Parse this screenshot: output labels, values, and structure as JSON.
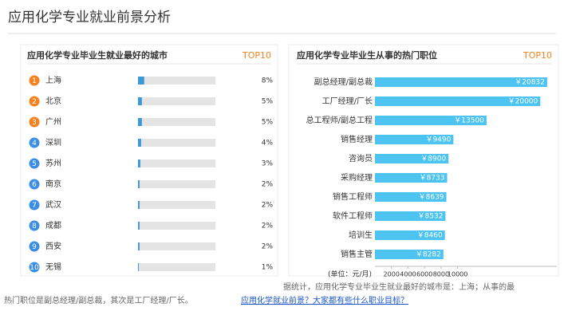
{
  "header": {
    "title": "应用化学专业就业前景分析"
  },
  "chart_data": [
    {
      "type": "progress",
      "title": "应用化学专业毕业生就业最好的城市",
      "badge": "TOP10",
      "ranks": [
        1,
        2,
        3,
        4,
        5,
        6,
        7,
        8,
        9,
        10
      ],
      "categories": [
        "上海",
        "北京",
        "广州",
        "深圳",
        "苏州",
        "南京",
        "武汉",
        "成都",
        "西安",
        "无锡"
      ],
      "values": [
        8,
        5,
        5,
        4,
        3,
        2,
        2,
        2,
        2,
        1
      ],
      "value_labels": [
        "8%",
        "5%",
        "5%",
        "4%",
        "3%",
        "2%",
        "2%",
        "2%",
        "2%",
        "1%"
      ],
      "xlim": [
        0,
        100
      ],
      "color": "#3a9ad9",
      "track_color": "#e4e4e4",
      "rank_colors": [
        "#f5821f",
        "#f5821f",
        "#f5821f",
        "#3a8ee6",
        "#3a8ee6",
        "#3a8ee6",
        "#3a8ee6",
        "#3a8ee6",
        "#3a8ee6",
        "#3a8ee6"
      ]
    },
    {
      "type": "bar",
      "title": "应用化学专业毕业生从事的热门职位",
      "badge": "TOP10",
      "categories": [
        "副总经理/副总裁",
        "工厂经理/厂长",
        "总工程师/副总工程",
        "销售经理",
        "咨询员",
        "采购经理",
        "销售工程师",
        "软件工程师",
        "培训生",
        "销售主管"
      ],
      "values": [
        20832,
        20000,
        13500,
        9490,
        8900,
        8733,
        8639,
        8532,
        8460,
        8282
      ],
      "value_labels": [
        "￥20832",
        "￥20000",
        "￥13500",
        "￥9490",
        "￥8900",
        "￥8733",
        "￥8639",
        "￥8532",
        "￥8460",
        "￥8282"
      ],
      "xlabel": "(单位：元/月)",
      "xlim": [
        0,
        22000
      ],
      "xticks": [
        2000,
        4000,
        6000,
        8000,
        10000
      ],
      "color": "#4cc3f0"
    }
  ],
  "footer": {
    "lines": [
      "据统计，应用化学专业毕业生就业最好的城市是：上海；从事的最",
      "热门职位是副总经理/副总裁，其次是工厂经理/厂长。"
    ],
    "link": "应用化学就业前景？大家都有些什么职业目标？"
  }
}
